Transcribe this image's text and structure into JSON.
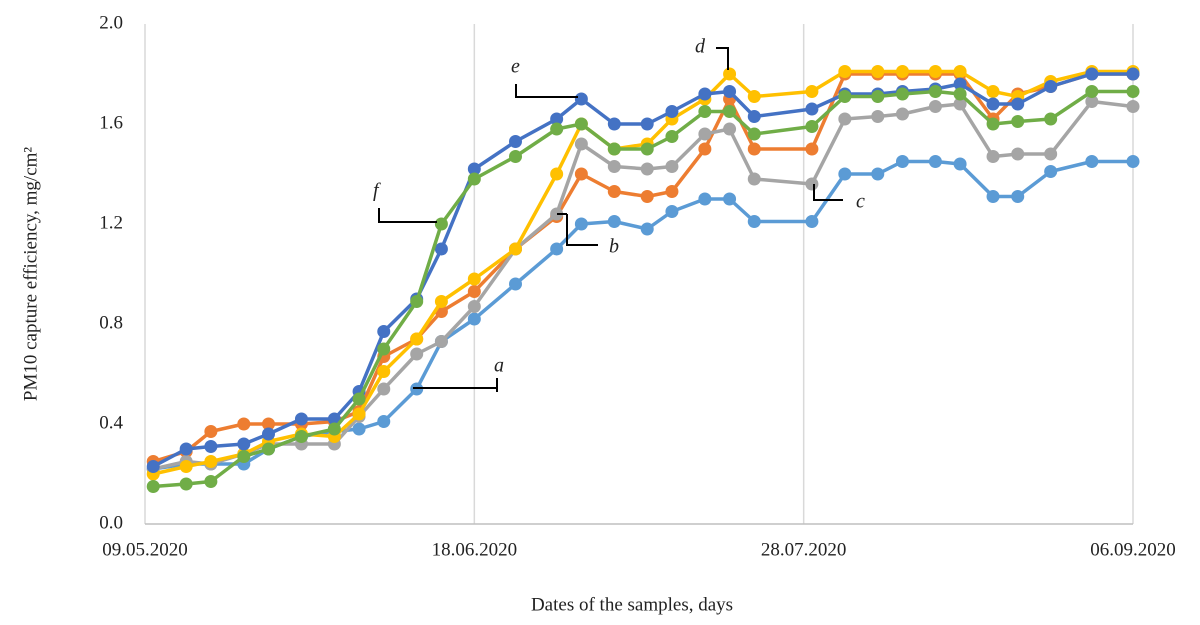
{
  "chart_data": {
    "type": "line",
    "ylabel": "PM10 capture efficiency, mg/cm²",
    "xlabel": "Dates of the samples, days",
    "x": [
      "2020-05-10",
      "2020-05-14",
      "2020-05-17",
      "2020-05-21",
      "2020-05-24",
      "2020-05-28",
      "2020-06-01",
      "2020-06-04",
      "2020-06-07",
      "2020-06-11",
      "2020-06-14",
      "2020-06-18",
      "2020-06-23",
      "2020-06-28",
      "2020-07-01",
      "2020-07-05",
      "2020-07-09",
      "2020-07-12",
      "2020-07-16",
      "2020-07-19",
      "2020-07-22",
      "2020-07-29",
      "2020-08-02",
      "2020-08-06",
      "2020-08-09",
      "2020-08-13",
      "2020-08-16",
      "2020-08-20",
      "2020-08-23",
      "2020-08-27",
      "2020-09-01",
      "2020-09-06"
    ],
    "series": [
      {
        "name": "a",
        "color": "#5b9bd5",
        "values": [
          0.22,
          0.24,
          0.24,
          0.24,
          0.3,
          0.35,
          0.37,
          0.38,
          0.41,
          0.54,
          0.73,
          0.82,
          0.96,
          1.1,
          1.2,
          1.21,
          1.18,
          1.25,
          1.3,
          1.3,
          1.21,
          1.21,
          1.4,
          1.4,
          1.45,
          1.45,
          1.44,
          1.31,
          1.31,
          1.41,
          1.45,
          1.45
        ]
      },
      {
        "name": "b",
        "color": "#ed7d31",
        "values": [
          0.25,
          0.29,
          0.37,
          0.4,
          0.4,
          0.4,
          0.41,
          0.45,
          0.67,
          0.74,
          0.85,
          0.93,
          1.1,
          1.23,
          1.4,
          1.33,
          1.31,
          1.33,
          1.5,
          1.7,
          1.5,
          1.5,
          1.8,
          1.8,
          1.8,
          1.8,
          1.8,
          1.62,
          1.72,
          1.75,
          1.8,
          1.8
        ]
      },
      {
        "name": "c",
        "color": "#a5a5a5",
        "values": [
          0.22,
          0.25,
          0.24,
          0.28,
          0.32,
          0.32,
          0.32,
          0.43,
          0.54,
          0.68,
          0.73,
          0.87,
          1.1,
          1.24,
          1.52,
          1.43,
          1.42,
          1.43,
          1.56,
          1.58,
          1.38,
          1.36,
          1.62,
          1.63,
          1.64,
          1.67,
          1.68,
          1.47,
          1.48,
          1.48,
          1.69,
          1.67
        ]
      },
      {
        "name": "d",
        "color": "#ffc000",
        "values": [
          0.2,
          0.23,
          0.25,
          0.28,
          0.33,
          0.36,
          0.35,
          0.44,
          0.61,
          0.74,
          0.89,
          0.98,
          1.1,
          1.4,
          1.6,
          1.5,
          1.52,
          1.62,
          1.7,
          1.8,
          1.71,
          1.73,
          1.81,
          1.81,
          1.81,
          1.81,
          1.81,
          1.73,
          1.71,
          1.77,
          1.81,
          1.81
        ]
      },
      {
        "name": "e",
        "color": "#4472c4",
        "values": [
          0.23,
          0.3,
          0.31,
          0.32,
          0.36,
          0.42,
          0.42,
          0.53,
          0.77,
          0.9,
          1.1,
          1.42,
          1.53,
          1.62,
          1.7,
          1.6,
          1.6,
          1.65,
          1.72,
          1.73,
          1.63,
          1.66,
          1.72,
          1.72,
          1.73,
          1.74,
          1.76,
          1.68,
          1.68,
          1.75,
          1.8,
          1.8
        ]
      },
      {
        "name": "f",
        "color": "#70ad47",
        "values": [
          0.15,
          0.16,
          0.17,
          0.27,
          0.3,
          0.35,
          0.38,
          0.5,
          0.7,
          0.89,
          1.2,
          1.38,
          1.47,
          1.58,
          1.6,
          1.5,
          1.5,
          1.55,
          1.65,
          1.65,
          1.56,
          1.59,
          1.71,
          1.71,
          1.72,
          1.73,
          1.72,
          1.6,
          1.61,
          1.62,
          1.73,
          1.73
        ]
      }
    ],
    "xlim": [
      "2020-05-09",
      "2020-09-06"
    ],
    "xticks": [
      {
        "value": "2020-05-09",
        "label": "09.05.2020"
      },
      {
        "value": "2020-06-18",
        "label": "18.06.2020"
      },
      {
        "value": "2020-07-28",
        "label": "28.07.2020"
      },
      {
        "value": "2020-09-06",
        "label": "06.09.2020"
      }
    ],
    "ylim": [
      0,
      2
    ],
    "yticks": [
      {
        "value": 0,
        "label": "0.0"
      },
      0.4,
      0.8,
      1.2,
      1.6,
      {
        "value": 2,
        "label": "2.0"
      }
    ],
    "grid": "x"
  }
}
